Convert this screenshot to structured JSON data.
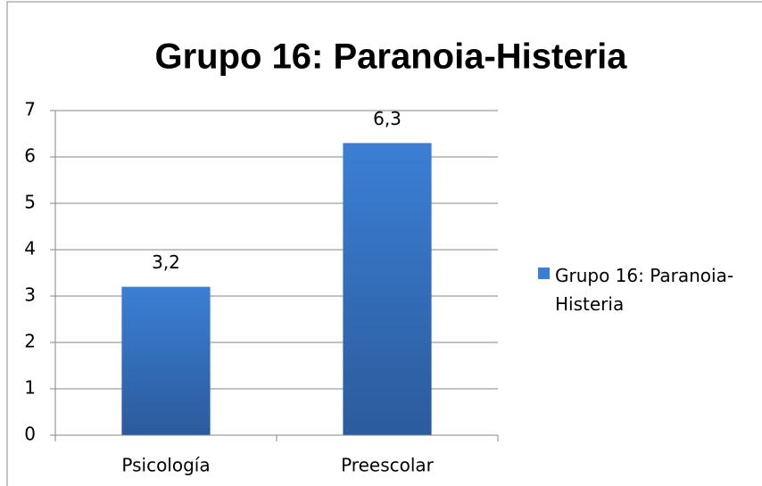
{
  "chart_data": {
    "type": "bar",
    "title": "Grupo 16: Paranoia-Histeria",
    "categories": [
      "Psicología",
      "Preescolar"
    ],
    "series": [
      {
        "name": "Grupo 16: Paranoia-Histeria",
        "color": "#3b7fd4",
        "values": [
          3.2,
          6.3
        ],
        "value_labels": [
          "3,2",
          "6,3"
        ]
      }
    ],
    "ylim": [
      0,
      7
    ],
    "yticks": [
      0,
      1,
      2,
      3,
      4,
      5,
      6,
      7
    ],
    "grid": true,
    "legend": "right"
  }
}
